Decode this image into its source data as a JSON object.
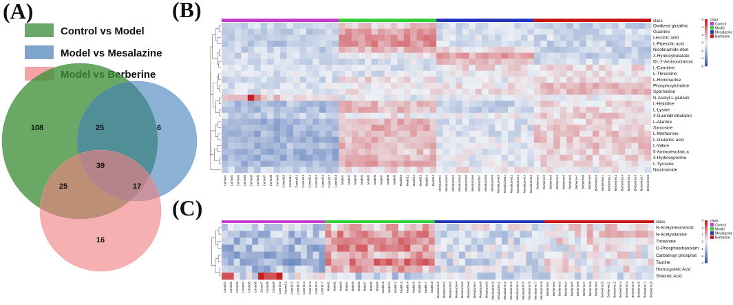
{
  "panel_labels": {
    "a": "(A)",
    "b": "(B)",
    "c": "(C)"
  },
  "colors": {
    "control": "#c43bd0",
    "model": "#2fcf3a",
    "mesalazine": "#2335b8",
    "berberine": "#c81414",
    "venn_control_model": "#3f8f3a",
    "venn_model_mesalazine": "#3f7fba",
    "venn_model_berberine": "#f07f83"
  },
  "venn": {
    "legend": [
      {
        "label": "Control vs Model",
        "color": "#6aa86a"
      },
      {
        "label": "Model vs Mesalazine",
        "color": "#7ea6cc"
      },
      {
        "label": "Model vs Berberine",
        "color": "#f5a3a6"
      }
    ],
    "regions": {
      "cm_only": "108",
      "cm_mm": "25",
      "mm_only": "6",
      "all_three": "39",
      "cm_mb": "25",
      "mm_mb": "17",
      "mb_only": "16"
    }
  },
  "legend_common": {
    "title": "class",
    "groups": [
      "Control",
      "Model",
      "Mesalazine",
      "Berberine"
    ]
  },
  "heatmap_b": {
    "scale_ticks": [
      "6",
      "4",
      "2",
      "0",
      "-2",
      "-4",
      "-6"
    ],
    "rows": [
      "Oxidized glutathio",
      "Guanine",
      "Leucinic acid",
      "L-Pipecolic acid",
      "Nicotinamide ribot",
      "3-Hyrdoxybutarate",
      "DL-2-Aminooctanoic",
      "L-Carnitine",
      "L-Threonine",
      "L-Homoserine",
      "Phosphorylcholine",
      "Spermidine",
      "N-Acetyl-L-glutami",
      "L-Histidine",
      "L-Lysine",
      "4-Guanidinobutanoi",
      "L-Alanine",
      "Sarcosine",
      "L-Methionine",
      "L-Glutamic acid",
      "L-Valine",
      "5-Aminolevulinic a",
      "3-Hydroxyproline",
      "L-Tyrosine",
      "Niacinamide"
    ],
    "columns": [
      "Control1",
      "Control2",
      "Control3",
      "Control4",
      "Control5",
      "Control6",
      "Control7",
      "Control8",
      "Control9",
      "Control10",
      "Control11",
      "Control12",
      "Control13",
      "Control14",
      "Control15",
      "Control16",
      "Control17",
      "Control18",
      "Model1",
      "Model2",
      "Model3",
      "Model4",
      "Model5",
      "Model6",
      "Model7",
      "Model8",
      "Model9",
      "Model10",
      "Model11",
      "Model12",
      "Model13",
      "Model14",
      "Model15",
      "Mesalazine1",
      "Mesalazine2",
      "Mesalazine3",
      "Mesalazine4",
      "Mesalazine5",
      "Mesalazine6",
      "Mesalazine7",
      "Mesalazine8",
      "Mesalazine9",
      "Mesalazine10",
      "Mesalazine11",
      "Mesalazine12",
      "Mesalazine13",
      "Mesalazine14",
      "Mesalazine15",
      "Berberine1",
      "Berberine2",
      "Berberine3",
      "Berberine4",
      "Berberine5",
      "Berberine6",
      "Berberine7",
      "Berberine8",
      "Berberine9",
      "Berberine10",
      "Berberine11",
      "Berberine12",
      "Berberine13",
      "Berberine14",
      "Berberine15",
      "Berberine16",
      "Berberine17",
      "Berberine18"
    ],
    "group_counts": [
      18,
      15,
      15,
      18
    ]
  },
  "heatmap_c": {
    "scale_ticks": [
      "3",
      "2",
      "1",
      "0",
      "-1",
      "-2",
      "-3"
    ],
    "rows": [
      "N-Acetylneuraminic",
      "N-Acetylalanine",
      "Threonine",
      "O-Phosphoethanolam",
      "Carbamoyl phosphat",
      "Taurine",
      "Homocysteic Acid",
      "Shikimic Acid"
    ],
    "columns": [
      "Control1",
      "Control2",
      "Control3",
      "Control4",
      "Control5",
      "Control6",
      "Control7",
      "Control8",
      "Control9",
      "Control10",
      "Control11",
      "Control12",
      "Control13",
      "Control14",
      "Control15",
      "Control16",
      "Control17",
      "Model1",
      "Model2",
      "Model3",
      "Model4",
      "Model5",
      "Model6",
      "Model7",
      "Model8",
      "Model9",
      "Model10",
      "Model11",
      "Model12",
      "Model13",
      "Model14",
      "Model15",
      "Model16",
      "Model17",
      "Model18",
      "Mesalazine1",
      "Mesalazine2",
      "Mesalazine3",
      "Mesalazine4",
      "Mesalazine5",
      "Mesalazine6",
      "Mesalazine7",
      "Mesalazine8",
      "Mesalazine9",
      "Mesalazine10",
      "Mesalazine11",
      "Mesalazine12",
      "Mesalazine13",
      "Mesalazine14",
      "Mesalazine15",
      "Mesalazine16",
      "Mesalazine17",
      "Mesalazine18",
      "Berberine1",
      "Berberine2",
      "Berberine3",
      "Berberine4",
      "Berberine5",
      "Berberine6",
      "Berberine7",
      "Berberine8",
      "Berberine9",
      "Berberine10",
      "Berberine11",
      "Berberine12",
      "Berberine13",
      "Berberine14",
      "Berberine15",
      "Berberine16",
      "Berberine17",
      "Berberine18"
    ],
    "group_counts": [
      17,
      18,
      18,
      18
    ]
  }
}
